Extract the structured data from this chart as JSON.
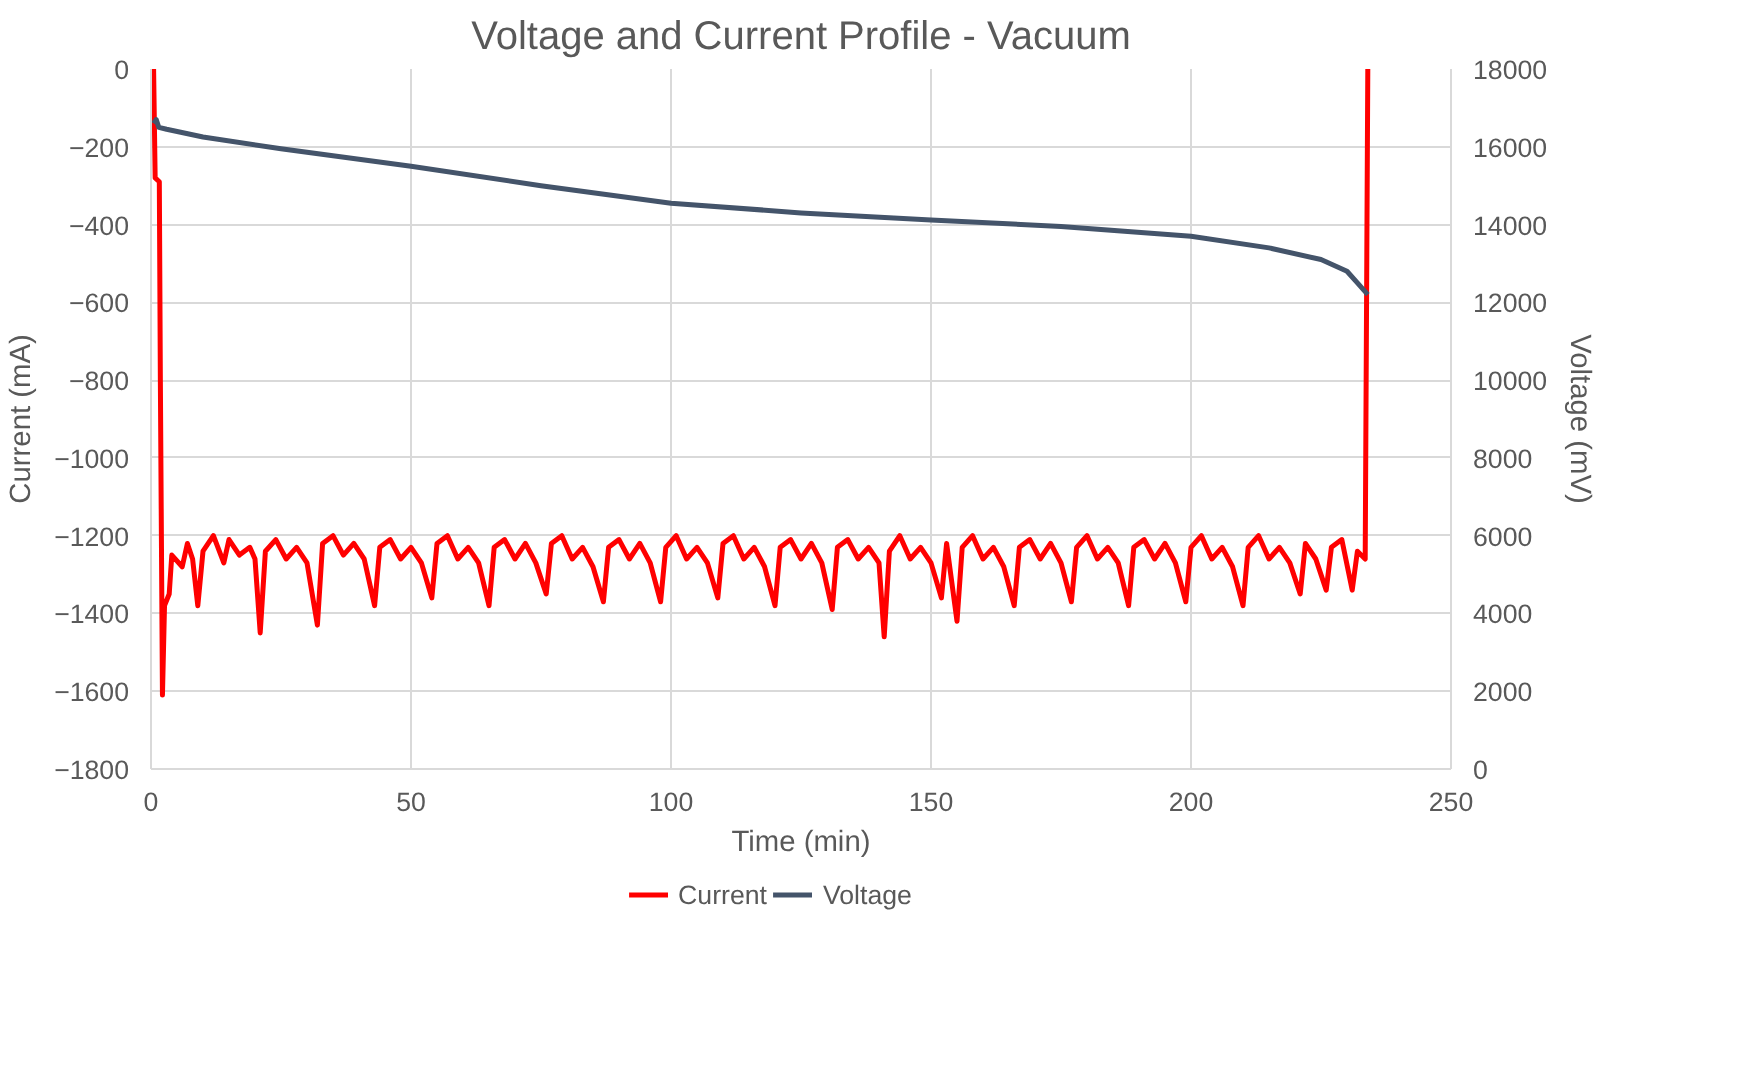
{
  "chart_data": {
    "type": "line",
    "title": "Voltage and Current Profile - Vacuum",
    "xlabel": "Time (min)",
    "ylabel": "Current (mA)",
    "y2label": "Voltage (mV)",
    "xlim": [
      0,
      250
    ],
    "xticks": [
      0,
      50,
      100,
      150,
      200,
      250
    ],
    "ylim": [
      -1800,
      0
    ],
    "yticks": [
      -1800,
      -1600,
      -1400,
      -1200,
      -1000,
      -800,
      -600,
      -400,
      -200,
      0
    ],
    "y2lim": [
      0,
      18000
    ],
    "y2ticks": [
      0,
      2000,
      4000,
      6000,
      8000,
      10000,
      12000,
      14000,
      16000,
      18000
    ],
    "grid": true,
    "legend": "bottom",
    "line_style": "solid",
    "marker": "none",
    "series": [
      {
        "name": "Current",
        "color": "#ff0000",
        "x": [
          0.5,
          0.8,
          1.6,
          1.8,
          2.2,
          2.6,
          3.5,
          4,
          6,
          7,
          8,
          9,
          10,
          12,
          14,
          15,
          17,
          19,
          20,
          21,
          22,
          24,
          26,
          28,
          30,
          32,
          33,
          35,
          37,
          39,
          41,
          43,
          44,
          46,
          48,
          50,
          52,
          54,
          55,
          57,
          59,
          61,
          63,
          65,
          66,
          68,
          70,
          72,
          74,
          76,
          77,
          79,
          81,
          83,
          85,
          87,
          88,
          90,
          92,
          94,
          96,
          98,
          99,
          101,
          103,
          105,
          107,
          109,
          110,
          112,
          114,
          116,
          118,
          120,
          121,
          123,
          125,
          127,
          129,
          131,
          132,
          134,
          136,
          138,
          140,
          141,
          142,
          144,
          146,
          148,
          150,
          152,
          153,
          155,
          156,
          158,
          160,
          162,
          164,
          166,
          167,
          169,
          171,
          173,
          175,
          177,
          178,
          180,
          182,
          184,
          186,
          188,
          189,
          191,
          193,
          195,
          197,
          199,
          200,
          202,
          204,
          206,
          208,
          210,
          211,
          213,
          215,
          217,
          219,
          221,
          222,
          224,
          226,
          227,
          229,
          231,
          232,
          233.5,
          234
        ],
        "values": [
          0,
          -280,
          -290,
          -800,
          -1610,
          -1380,
          -1350,
          -1250,
          -1280,
          -1220,
          -1260,
          -1380,
          -1240,
          -1200,
          -1270,
          -1210,
          -1250,
          -1230,
          -1260,
          -1450,
          -1240,
          -1210,
          -1260,
          -1230,
          -1270,
          -1430,
          -1220,
          -1200,
          -1250,
          -1220,
          -1260,
          -1380,
          -1230,
          -1210,
          -1260,
          -1230,
          -1270,
          -1360,
          -1220,
          -1200,
          -1260,
          -1230,
          -1270,
          -1380,
          -1230,
          -1210,
          -1260,
          -1220,
          -1270,
          -1350,
          -1220,
          -1200,
          -1260,
          -1230,
          -1280,
          -1370,
          -1230,
          -1210,
          -1260,
          -1220,
          -1270,
          -1370,
          -1230,
          -1200,
          -1260,
          -1230,
          -1270,
          -1360,
          -1220,
          -1200,
          -1260,
          -1230,
          -1280,
          -1380,
          -1230,
          -1210,
          -1260,
          -1220,
          -1270,
          -1390,
          -1230,
          -1210,
          -1260,
          -1230,
          -1270,
          -1460,
          -1240,
          -1200,
          -1260,
          -1230,
          -1270,
          -1360,
          -1220,
          -1420,
          -1230,
          -1200,
          -1260,
          -1230,
          -1280,
          -1380,
          -1230,
          -1210,
          -1260,
          -1220,
          -1270,
          -1370,
          -1230,
          -1200,
          -1260,
          -1230,
          -1270,
          -1380,
          -1230,
          -1210,
          -1260,
          -1220,
          -1270,
          -1370,
          -1230,
          -1200,
          -1260,
          -1230,
          -1280,
          -1380,
          -1230,
          -1200,
          -1260,
          -1230,
          -1270,
          -1350,
          -1220,
          -1260,
          -1340,
          -1230,
          -1210,
          -1340,
          -1240,
          -1260,
          0
        ]
      },
      {
        "name": "Voltage",
        "color": "#44546a",
        "axis": "y2",
        "x": [
          0.5,
          1,
          1.5,
          3,
          10,
          25,
          50,
          75,
          100,
          125,
          150,
          175,
          200,
          215,
          225,
          230,
          232,
          234
        ],
        "values": [
          16600,
          16700,
          16500,
          16450,
          16250,
          15950,
          15500,
          15000,
          14550,
          14300,
          14120,
          13950,
          13700,
          13400,
          13100,
          12800,
          12500,
          12200
        ]
      }
    ]
  }
}
